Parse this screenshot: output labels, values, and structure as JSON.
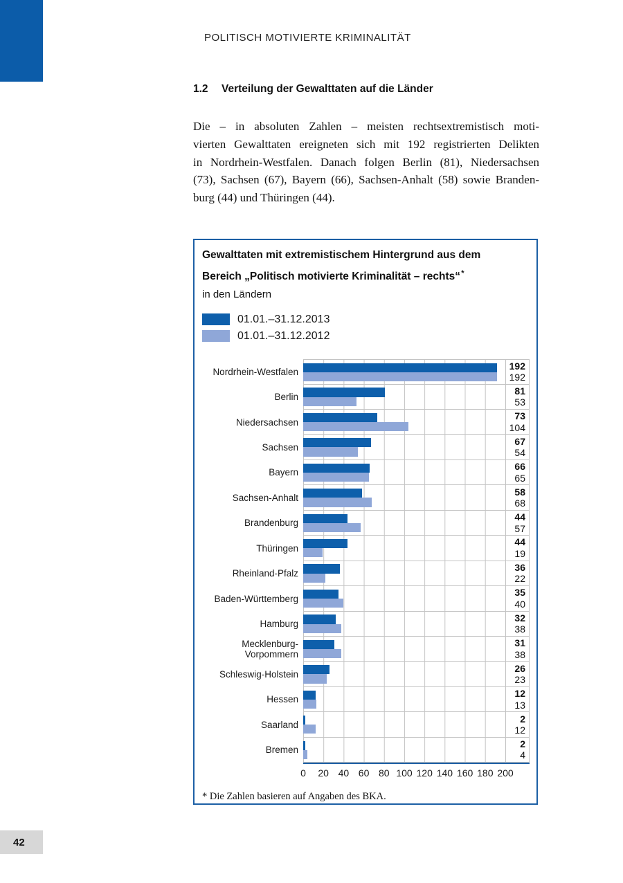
{
  "page": {
    "header": "POLITISCH MOTIVIERTE KRIMINALITÄT",
    "section_number": "1.2",
    "section_title": "Verteilung der Gewalttaten auf die Länder",
    "paragraph_lines": [
      "Die – in absoluten Zahlen – meisten rechtsextremistisch moti-",
      "vierten Gewalttaten ereigneten sich mit 192 registrierten Delikten",
      "in Nordrhein-Westfalen. Danach folgen Berlin (81), Niedersachsen",
      "(73), Sachsen (67), Bayern (66), Sachsen-Anhalt (58) sowie Branden-",
      "burg (44) und Thüringen (44)."
    ],
    "page_number": "42"
  },
  "chart_box": {
    "title_line1": "Gewalttaten mit extremistischem Hintergrund aus dem",
    "title_line2": "Bereich „Politisch motivierte Kriminalität – rechts“",
    "title_asterisk": "*",
    "title_line3": "in den Ländern",
    "footnote": "* Die Zahlen basieren auf Angaben des BKA."
  },
  "colors": {
    "accent_dark_blue": "#0c5ca9",
    "series_2013": "#0e5fab",
    "series_2012": "#8fa7d8",
    "box_border_blue": "#1c5fa5",
    "gridline_gray": "#c4c4c4",
    "page_number_gray": "#d7d7d7"
  },
  "chart_data": {
    "type": "bar",
    "orientation": "horizontal",
    "title": "Gewalttaten mit extremistischem Hintergrund aus dem Bereich „Politisch motivierte Kriminalität – rechts“ in den Ländern",
    "legend_position": "top-left",
    "grid": true,
    "xlim": [
      0,
      200
    ],
    "x_ticks": [
      0,
      20,
      40,
      60,
      80,
      100,
      120,
      140,
      160,
      180,
      200
    ],
    "categories": [
      "Nordrhein-Westfalen",
      "Berlin",
      "Niedersachsen",
      "Sachsen",
      "Bayern",
      "Sachsen-Anhalt",
      "Brandenburg",
      "Thüringen",
      "Rheinland-Pfalz",
      "Baden-Württemberg",
      "Hamburg",
      "Mecklenburg-Vorpommern",
      "Schleswig-Holstein",
      "Hessen",
      "Saarland",
      "Bremen"
    ],
    "series": [
      {
        "name": "01.01.–31.12.2013",
        "color": "#0e5fab",
        "values": [
          192,
          81,
          73,
          67,
          66,
          58,
          44,
          44,
          36,
          35,
          32,
          31,
          26,
          12,
          2,
          2
        ]
      },
      {
        "name": "01.01.–31.12.2012",
        "color": "#8fa7d8",
        "values": [
          192,
          53,
          104,
          54,
          65,
          68,
          57,
          19,
          22,
          40,
          38,
          38,
          23,
          13,
          12,
          4
        ]
      }
    ],
    "footnote": "* Die Zahlen basieren auf Angaben des BKA."
  }
}
